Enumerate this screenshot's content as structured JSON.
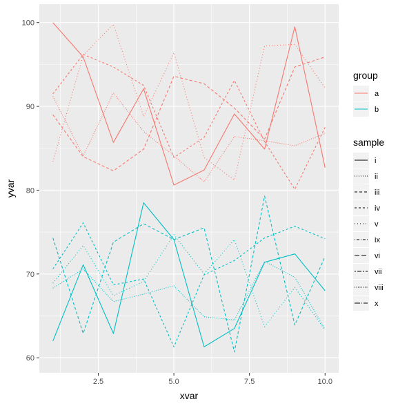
{
  "chart_data": {
    "type": "line",
    "title": "",
    "xlabel": "xvar",
    "ylabel": "yvar",
    "xlim": [
      0.55,
      10.45
    ],
    "ylim": [
      58.2,
      102.2
    ],
    "x_ticks": [
      2.5,
      5.0,
      7.5,
      10.0
    ],
    "x_tick_labels": [
      "2.5",
      "5.0",
      "7.5",
      "10.0"
    ],
    "y_ticks": [
      60,
      70,
      80,
      90,
      100
    ],
    "y_tick_labels": [
      "60",
      "70",
      "80",
      "90",
      "100"
    ],
    "grid": true,
    "x": [
      1,
      2,
      3,
      4,
      5,
      6,
      7,
      8,
      9,
      10
    ],
    "legend": {
      "group": {
        "title": "group",
        "items": [
          {
            "label": "a",
            "color": "#F8766D"
          },
          {
            "label": "b",
            "color": "#00BFC4"
          }
        ]
      },
      "sample": {
        "title": "sample",
        "items": [
          {
            "label": "i",
            "dash": "solid"
          },
          {
            "label": "ii",
            "dash": "dotted"
          },
          {
            "label": "iii",
            "dash": "dashed"
          },
          {
            "label": "iv",
            "dash": "dashed-short"
          },
          {
            "label": "v",
            "dash": "dotted-sparse"
          },
          {
            "label": "ix",
            "dash": "dotdash"
          },
          {
            "label": "vi",
            "dash": "longdash"
          },
          {
            "label": "vii",
            "dash": "twodash"
          },
          {
            "label": "viii",
            "dash": "dotted-fine"
          },
          {
            "label": "x",
            "dash": "longdash-dot"
          }
        ]
      }
    },
    "series": [
      {
        "group": "a",
        "sample": "i",
        "values": [
          100.0,
          95.9,
          85.7,
          92.1,
          80.6,
          82.4,
          89.1,
          84.9,
          99.5,
          82.7
        ]
      },
      {
        "group": "a",
        "sample": "ii",
        "values": [
          91.2,
          84.1,
          91.6,
          87.0,
          84.1,
          81.0,
          86.4,
          85.9,
          85.3,
          86.8
        ]
      },
      {
        "group": "a",
        "sample": "iii",
        "values": [
          89.0,
          84.0,
          82.3,
          84.9,
          93.6,
          92.7,
          89.8,
          86.1,
          94.7,
          95.9
        ]
      },
      {
        "group": "a",
        "sample": "iv",
        "values": [
          91.5,
          96.2,
          94.7,
          92.5,
          83.9,
          86.3,
          93.1,
          85.8,
          80.1,
          87.5
        ]
      },
      {
        "group": "a",
        "sample": "v",
        "values": [
          83.4,
          96.1,
          99.8,
          88.8,
          96.4,
          83.9,
          81.2,
          97.2,
          97.4,
          92.2
        ]
      },
      {
        "group": "b",
        "sample": "i",
        "values": [
          62.0,
          71.1,
          62.9,
          78.5,
          74.1,
          61.3,
          63.5,
          71.4,
          72.4,
          68.0
        ]
      },
      {
        "group": "b",
        "sample": "ii",
        "values": [
          68.3,
          70.6,
          66.7,
          67.6,
          68.6,
          64.9,
          64.5,
          71.5,
          69.6,
          63.4
        ]
      },
      {
        "group": "b",
        "sample": "iii",
        "values": [
          74.3,
          62.9,
          73.8,
          76.0,
          74.1,
          75.5,
          60.7,
          79.3,
          63.9,
          72.1
        ]
      },
      {
        "group": "b",
        "sample": "iv",
        "values": [
          70.6,
          76.1,
          68.7,
          69.4,
          61.3,
          69.9,
          71.6,
          74.3,
          75.7,
          74.2
        ]
      },
      {
        "group": "b",
        "sample": "v",
        "values": [
          68.9,
          73.4,
          67.4,
          69.1,
          74.7,
          70.0,
          74.1,
          63.7,
          68.4,
          63.3
        ]
      }
    ]
  }
}
